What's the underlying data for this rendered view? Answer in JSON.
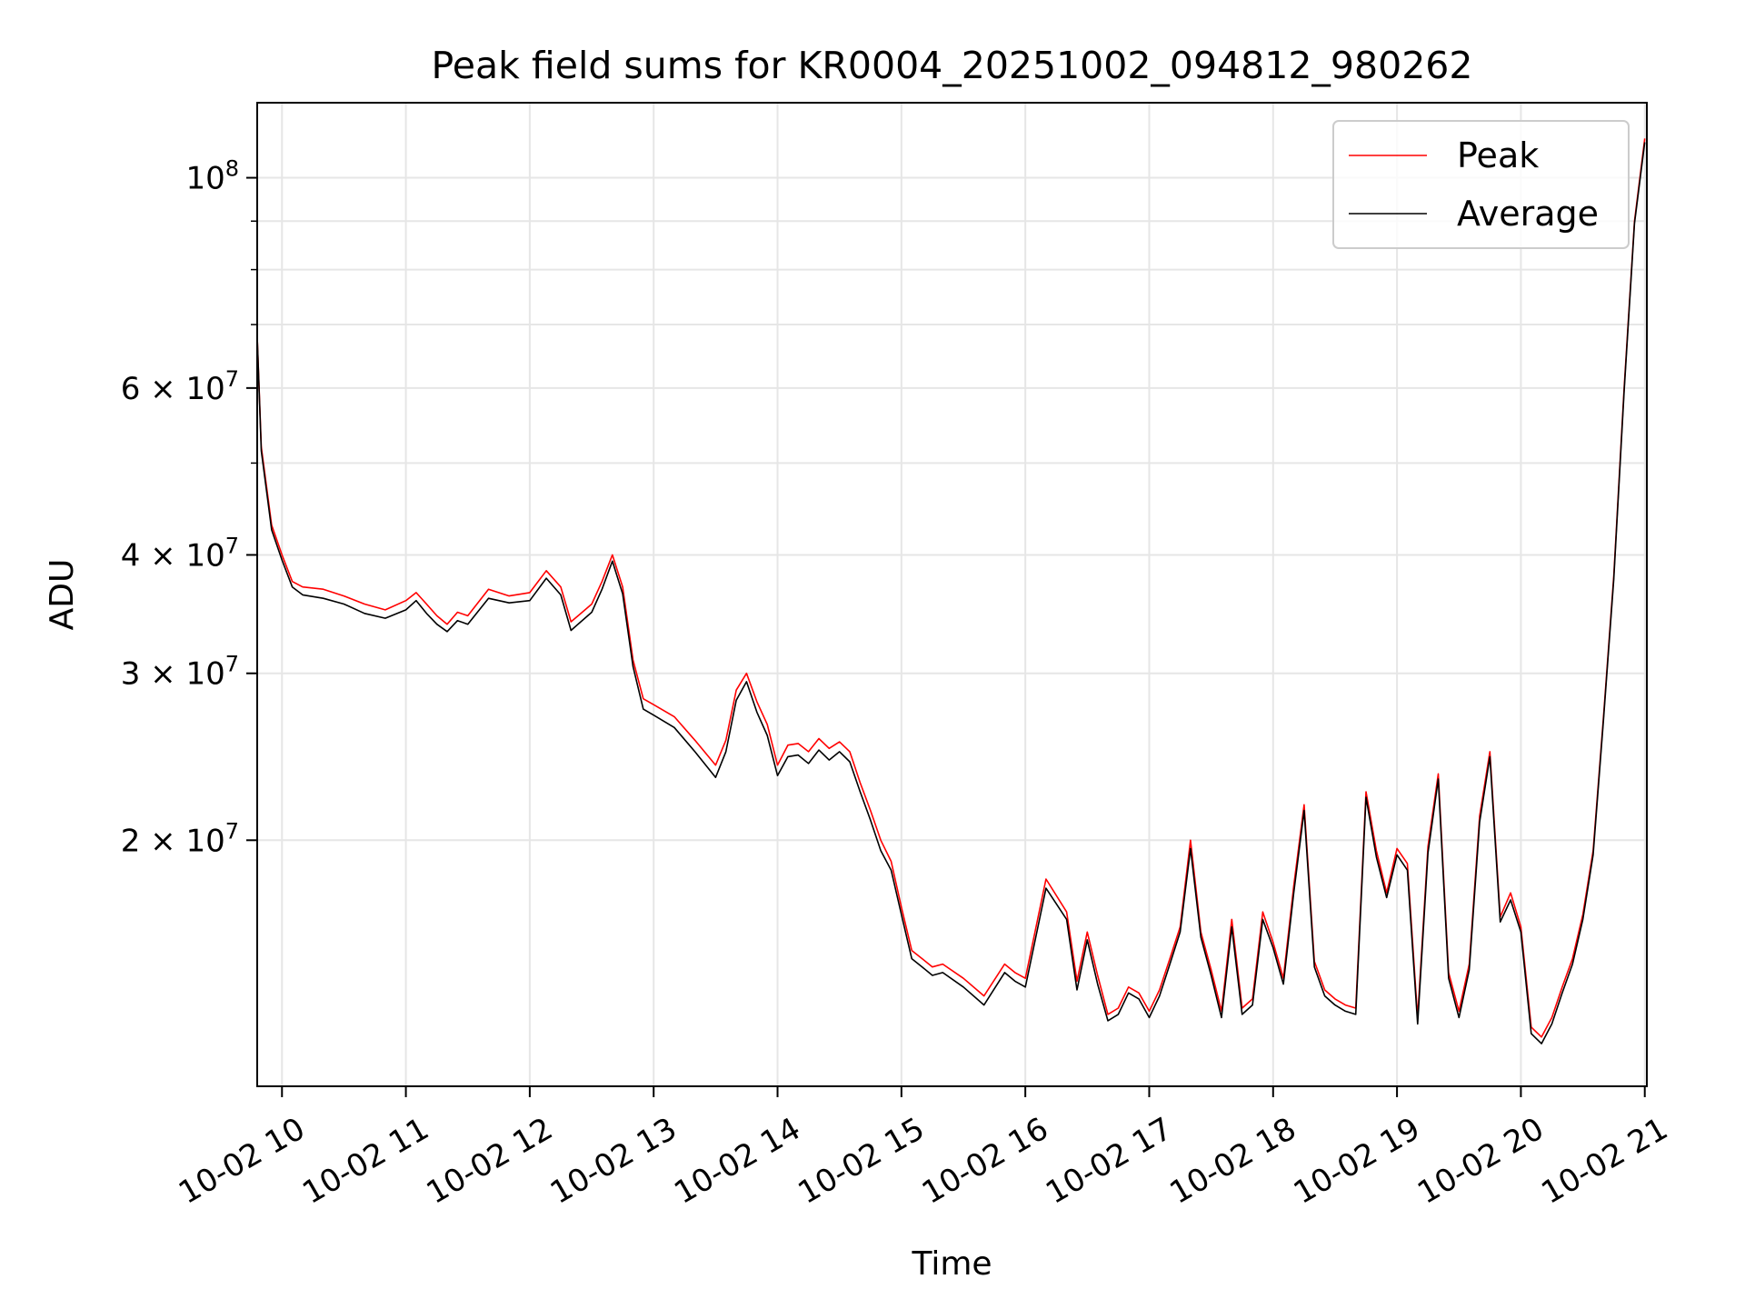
{
  "chart_data": {
    "type": "line",
    "title": "Peak field sums for KR0004_20251002_094812_980262",
    "xlabel": "Time",
    "ylabel": "ADU",
    "y_scale": "log",
    "x_axis": "datetime (hours on 2025-10-02)",
    "xlim": [
      "2025-10-02 09:48",
      "2025-10-02 21:01"
    ],
    "ylim": [
      11000000,
      120000000
    ],
    "x_tick_labels": [
      "10-02 10",
      "10-02 11",
      "10-02 12",
      "10-02 13",
      "10-02 14",
      "10-02 15",
      "10-02 16",
      "10-02 17",
      "10-02 18",
      "10-02 19",
      "10-02 20",
      "10-02 21"
    ],
    "y_tick_labels": [
      {
        "value": 100000000,
        "base": "10",
        "exp": "8",
        "mant": ""
      },
      {
        "value": 60000000,
        "base": "10",
        "exp": "7",
        "mant": "6 × "
      },
      {
        "value": 40000000,
        "base": "10",
        "exp": "7",
        "mant": "4 × "
      },
      {
        "value": 30000000,
        "base": "10",
        "exp": "7",
        "mant": "3 × "
      },
      {
        "value": 20000000,
        "base": "10",
        "exp": "7",
        "mant": "2 × "
      }
    ],
    "grid": true,
    "legend": {
      "placement": "top-right",
      "entries": [
        "Peak",
        "Average"
      ]
    },
    "colors": {
      "Peak": "#ff0000",
      "Average": "#000000",
      "grid": "#e6e6e6"
    },
    "x": [
      "09:48",
      "09:50",
      "09:55",
      "10:00",
      "10:05",
      "10:10",
      "10:20",
      "10:30",
      "10:40",
      "10:50",
      "11:00",
      "11:05",
      "11:10",
      "11:15",
      "11:20",
      "11:25",
      "11:30",
      "11:40",
      "11:50",
      "12:00",
      "12:08",
      "12:15",
      "12:20",
      "12:30",
      "12:35",
      "12:40",
      "12:45",
      "12:50",
      "12:55",
      "13:00",
      "13:10",
      "13:20",
      "13:30",
      "13:35",
      "13:40",
      "13:45",
      "13:50",
      "13:55",
      "14:00",
      "14:05",
      "14:10",
      "14:15",
      "14:20",
      "14:25",
      "14:30",
      "14:35",
      "14:40",
      "14:45",
      "14:50",
      "14:55",
      "15:00",
      "15:05",
      "15:10",
      "15:15",
      "15:20",
      "15:30",
      "15:40",
      "15:50",
      "15:55",
      "16:00",
      "16:10",
      "16:20",
      "16:25",
      "16:30",
      "16:35",
      "16:40",
      "16:45",
      "16:50",
      "16:55",
      "17:00",
      "17:05",
      "17:10",
      "17:15",
      "17:20",
      "17:25",
      "17:30",
      "17:35",
      "17:40",
      "17:45",
      "17:50",
      "17:55",
      "18:00",
      "18:05",
      "18:10",
      "18:15",
      "18:20",
      "18:25",
      "18:30",
      "18:35",
      "18:40",
      "18:45",
      "18:50",
      "18:55",
      "19:00",
      "19:05",
      "19:10",
      "19:15",
      "19:20",
      "19:25",
      "19:30",
      "19:35",
      "19:40",
      "19:45",
      "19:50",
      "19:55",
      "20:00",
      "20:05",
      "20:10",
      "20:15",
      "20:20",
      "20:25",
      "20:30",
      "20:35",
      "20:40",
      "20:45",
      "20:50",
      "20:55",
      "21:00"
    ],
    "series": [
      {
        "name": "Peak",
        "values": [
          68000000,
          52000000,
          43000000,
          40000000,
          37500000,
          37000000,
          36800000,
          36200000,
          35500000,
          35000000,
          35800000,
          36500000,
          35500000,
          34500000,
          33800000,
          34800000,
          34500000,
          36800000,
          36200000,
          36500000,
          38500000,
          37000000,
          34000000,
          35500000,
          37500000,
          40000000,
          37000000,
          31000000,
          28200000,
          27800000,
          27000000,
          25500000,
          24000000,
          25500000,
          28800000,
          30000000,
          28000000,
          26500000,
          24000000,
          25200000,
          25300000,
          24800000,
          25600000,
          25000000,
          25400000,
          24800000,
          23000000,
          21500000,
          20000000,
          19000000,
          17000000,
          15300000,
          15000000,
          14700000,
          14800000,
          14300000,
          13700000,
          14800000,
          14500000,
          14300000,
          18200000,
          16800000,
          14200000,
          16000000,
          14400000,
          13100000,
          13300000,
          14000000,
          13800000,
          13200000,
          13900000,
          15000000,
          16200000,
          20000000,
          16000000,
          14600000,
          13200000,
          16500000,
          13300000,
          13600000,
          16800000,
          15600000,
          14300000,
          17900000,
          21800000,
          14900000,
          13900000,
          13600000,
          13400000,
          13300000,
          22500000,
          19500000,
          17600000,
          19600000,
          18900000,
          13000000,
          19700000,
          23500000,
          14500000,
          13200000,
          14800000,
          21200000,
          24800000,
          16600000,
          17600000,
          16200000,
          12700000,
          12400000,
          13000000,
          14000000,
          15000000,
          16700000,
          19500000,
          27000000,
          38000000,
          60000000,
          90000000,
          110000000
        ]
      },
      {
        "name": "Average",
        "values": [
          68000000,
          51500000,
          42500000,
          39500000,
          37000000,
          36300000,
          36000000,
          35500000,
          34700000,
          34300000,
          35000000,
          35800000,
          34700000,
          33800000,
          33200000,
          34100000,
          33800000,
          36000000,
          35600000,
          35800000,
          37800000,
          36300000,
          33300000,
          34800000,
          36800000,
          39400000,
          36400000,
          30500000,
          27500000,
          27100000,
          26300000,
          24800000,
          23300000,
          24800000,
          28100000,
          29400000,
          27300000,
          25800000,
          23400000,
          24500000,
          24600000,
          24100000,
          24900000,
          24300000,
          24800000,
          24200000,
          22500000,
          21000000,
          19500000,
          18600000,
          16700000,
          15000000,
          14700000,
          14400000,
          14500000,
          14000000,
          13400000,
          14500000,
          14200000,
          14000000,
          17800000,
          16500000,
          13900000,
          15700000,
          14100000,
          12900000,
          13100000,
          13800000,
          13600000,
          13000000,
          13700000,
          14800000,
          16000000,
          19600000,
          15800000,
          14400000,
          13000000,
          16200000,
          13100000,
          13400000,
          16500000,
          15400000,
          14100000,
          17600000,
          21500000,
          14700000,
          13700000,
          13400000,
          13200000,
          13100000,
          22200000,
          19200000,
          17400000,
          19300000,
          18600000,
          12800000,
          19400000,
          23200000,
          14300000,
          13000000,
          14600000,
          20900000,
          24500000,
          16400000,
          17300000,
          16000000,
          12500000,
          12200000,
          12800000,
          13800000,
          14800000,
          16500000,
          19300000,
          26800000,
          37700000,
          59500000,
          89500000,
          109000000
        ]
      }
    ]
  }
}
